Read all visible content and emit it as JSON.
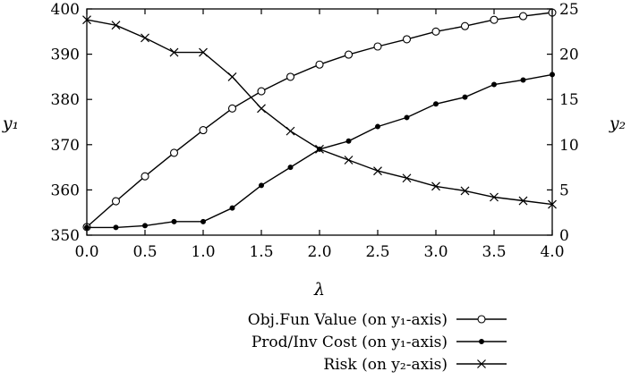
{
  "chart_data": {
    "type": "line",
    "xlabel": "λ",
    "ylabel_left": "y₁",
    "ylabel_right": "y₂",
    "xlim": [
      0,
      4
    ],
    "ylim_left": [
      350,
      400
    ],
    "ylim_right": [
      0,
      25
    ],
    "x_ticks": [
      0,
      0.5,
      1,
      1.5,
      2,
      2.5,
      3,
      3.5,
      4
    ],
    "x_tick_labels": [
      "0.0",
      "0.5",
      "1.0",
      "1.5",
      "2.0",
      "2.5",
      "3.0",
      "3.5",
      "4.0"
    ],
    "y_left_ticks": [
      350,
      360,
      370,
      380,
      390,
      400
    ],
    "y_left_tick_labels": [
      "350",
      "360",
      "370",
      "380",
      "390",
      "400"
    ],
    "y_right_ticks": [
      0,
      5,
      10,
      15,
      20,
      25
    ],
    "y_right_tick_labels": [
      "0",
      "5",
      "10",
      "15",
      "20",
      "25"
    ],
    "grid": false,
    "legend_position": "bottom-center",
    "x": [
      0,
      0.25,
      0.5,
      0.75,
      1.0,
      1.25,
      1.5,
      1.75,
      2.0,
      2.25,
      2.5,
      2.75,
      3.0,
      3.25,
      3.5,
      3.75,
      4.0
    ],
    "series": [
      {
        "name": "Obj.Fun Value (on y₁-axis)",
        "axis": "left",
        "marker": "open-circle",
        "values": [
          351.8,
          357.5,
          363.0,
          368.2,
          373.2,
          378.0,
          381.8,
          385.0,
          387.7,
          389.9,
          391.7,
          393.3,
          395.0,
          396.2,
          397.6,
          398.4,
          399.2
        ]
      },
      {
        "name": "Prod/Inv Cost (on y₁-axis)",
        "axis": "left",
        "marker": "filled-circle",
        "values": [
          351.7,
          351.7,
          352.1,
          353.0,
          353.0,
          356.0,
          361.0,
          365.0,
          369.0,
          370.8,
          374.0,
          376.0,
          379.0,
          380.5,
          383.3,
          384.3,
          385.5
        ]
      },
      {
        "name": "Risk (on y₂-axis)",
        "axis": "right",
        "marker": "cross",
        "values": [
          23.8,
          23.2,
          21.8,
          20.2,
          20.2,
          17.5,
          14.0,
          11.5,
          9.5,
          8.3,
          7.1,
          6.3,
          5.4,
          4.9,
          4.2,
          3.8,
          3.4
        ]
      }
    ]
  }
}
